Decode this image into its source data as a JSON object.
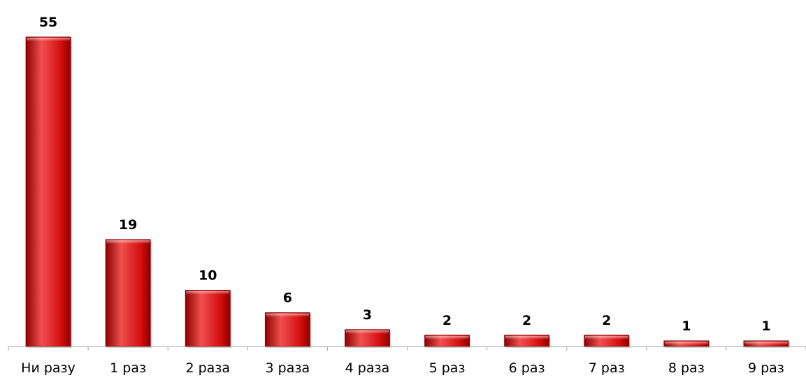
{
  "chart_data": {
    "type": "bar",
    "categories": [
      "Ни разу",
      "1 раз",
      "2 раза",
      "3 раза",
      "4 раза",
      "5 раз",
      "6 раз",
      "7 раз",
      "8 раз",
      "9 раз"
    ],
    "values": [
      55,
      19,
      10,
      6,
      3,
      2,
      2,
      2,
      1,
      1
    ],
    "value_labels": [
      "55",
      "19",
      "10",
      "6",
      "3",
      "2",
      "2",
      "2",
      "1",
      "1"
    ],
    "ylim": [
      0,
      55
    ],
    "grid": false,
    "legend": "none",
    "colors": {
      "bar_main": "#d10c0c",
      "bar_highlight": "#f05050",
      "bar_shadow": "#8e0000",
      "axis": "#a6a6a6"
    }
  }
}
